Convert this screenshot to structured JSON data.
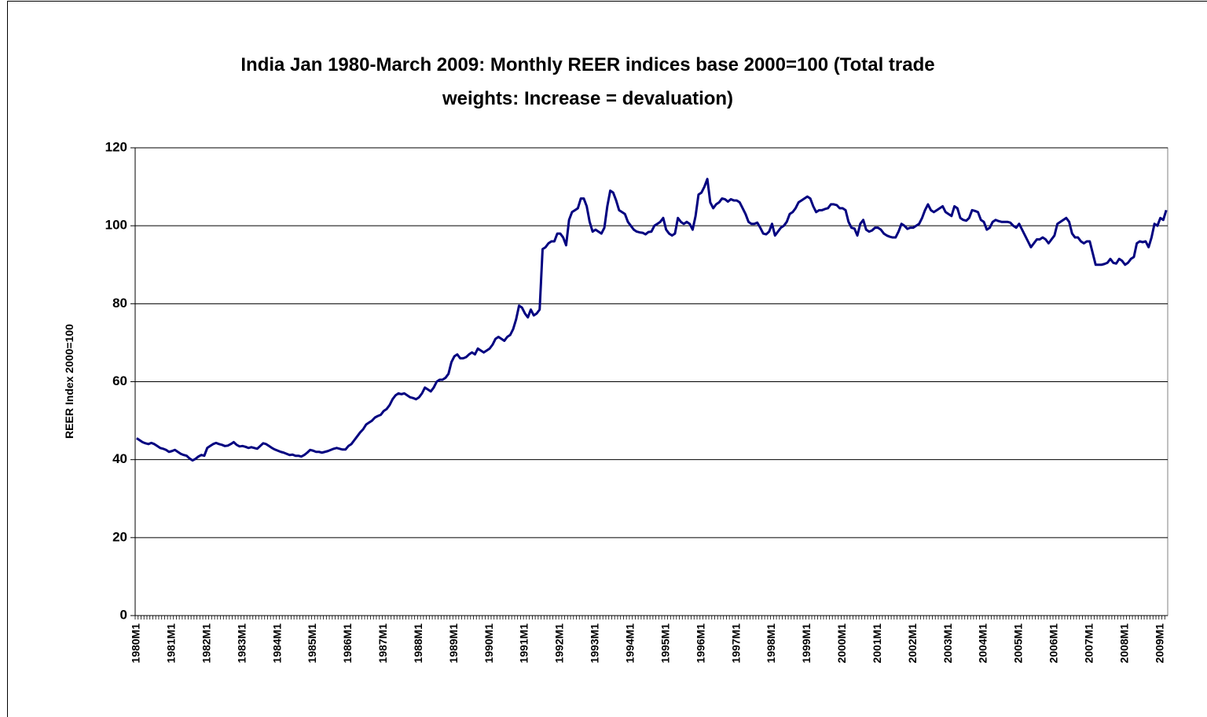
{
  "chart_data": {
    "type": "line",
    "title": [
      "India Jan 1980-March 2009: Monthly REER indices base 2000=100 (Total trade",
      "weights: Increase = devaluation)"
    ],
    "y_label": "REER Index 2000=100",
    "ylim": [
      0,
      120
    ],
    "yticks": [
      0,
      20,
      40,
      60,
      80,
      100,
      120
    ],
    "grid": true,
    "categories": [
      "1980M1",
      null,
      null,
      null,
      null,
      null,
      null,
      null,
      null,
      null,
      null,
      null,
      "1981M1",
      null,
      null,
      null,
      null,
      null,
      null,
      null,
      null,
      null,
      null,
      null,
      "1982M1",
      null,
      null,
      null,
      null,
      null,
      null,
      null,
      null,
      null,
      null,
      null,
      "1983M1",
      null,
      null,
      null,
      null,
      null,
      null,
      null,
      null,
      null,
      null,
      null,
      "1984M1",
      null,
      null,
      null,
      null,
      null,
      null,
      null,
      null,
      null,
      null,
      null,
      "1985M1",
      null,
      null,
      null,
      null,
      null,
      null,
      null,
      null,
      null,
      null,
      null,
      "1986M1",
      null,
      null,
      null,
      null,
      null,
      null,
      null,
      null,
      null,
      null,
      null,
      "1987M1",
      null,
      null,
      null,
      null,
      null,
      null,
      null,
      null,
      null,
      null,
      null,
      "1988M1",
      null,
      null,
      null,
      null,
      null,
      null,
      null,
      null,
      null,
      null,
      null,
      "1989M1",
      null,
      null,
      null,
      null,
      null,
      null,
      null,
      null,
      null,
      null,
      null,
      "1990M1",
      null,
      null,
      null,
      null,
      null,
      null,
      null,
      null,
      null,
      null,
      null,
      "1991M1",
      null,
      null,
      null,
      null,
      null,
      null,
      null,
      null,
      null,
      null,
      null,
      "1992M1",
      null,
      null,
      null,
      null,
      null,
      null,
      null,
      null,
      null,
      null,
      null,
      "1993M1",
      null,
      null,
      null,
      null,
      null,
      null,
      null,
      null,
      null,
      null,
      null,
      "1994M1",
      null,
      null,
      null,
      null,
      null,
      null,
      null,
      null,
      null,
      null,
      null,
      "1995M1",
      null,
      null,
      null,
      null,
      null,
      null,
      null,
      null,
      null,
      null,
      null,
      "1996M1",
      null,
      null,
      null,
      null,
      null,
      null,
      null,
      null,
      null,
      null,
      null,
      "1997M1",
      null,
      null,
      null,
      null,
      null,
      null,
      null,
      null,
      null,
      null,
      null,
      "1998M1",
      null,
      null,
      null,
      null,
      null,
      null,
      null,
      null,
      null,
      null,
      null,
      "1999M1",
      null,
      null,
      null,
      null,
      null,
      null,
      null,
      null,
      null,
      null,
      null,
      "2000M1",
      null,
      null,
      null,
      null,
      null,
      null,
      null,
      null,
      null,
      null,
      null,
      "2001M1",
      null,
      null,
      null,
      null,
      null,
      null,
      null,
      null,
      null,
      null,
      null,
      "2002M1",
      null,
      null,
      null,
      null,
      null,
      null,
      null,
      null,
      null,
      null,
      null,
      "2003M1",
      null,
      null,
      null,
      null,
      null,
      null,
      null,
      null,
      null,
      null,
      null,
      "2004M1",
      null,
      null,
      null,
      null,
      null,
      null,
      null,
      null,
      null,
      null,
      null,
      "2005M1",
      null,
      null,
      null,
      null,
      null,
      null,
      null,
      null,
      null,
      null,
      null,
      "2006M1",
      null,
      null,
      null,
      null,
      null,
      null,
      null,
      null,
      null,
      null,
      null,
      "2007M1",
      null,
      null,
      null,
      null,
      null,
      null,
      null,
      null,
      null,
      null,
      null,
      "2008M1",
      null,
      null,
      null,
      null,
      null,
      null,
      null,
      null,
      null,
      null,
      null,
      "2009M1",
      null,
      null
    ],
    "series": [
      {
        "color": "#000080",
        "values": [
          45.5,
          45,
          44.5,
          44.2,
          44,
          44.3,
          44,
          43.5,
          43,
          42.8,
          42.5,
          42,
          42.2,
          42.5,
          42,
          41.5,
          41.2,
          41,
          40.3,
          39.8,
          40.2,
          40.8,
          41.2,
          41,
          43,
          43.5,
          44,
          44.3,
          44,
          43.8,
          43.5,
          43.6,
          44,
          44.5,
          43.8,
          43.4,
          43.5,
          43.3,
          43,
          43.2,
          43,
          42.8,
          43.5,
          44.2,
          44,
          43.5,
          43,
          42.6,
          42.3,
          42,
          41.8,
          41.5,
          41.2,
          41.3,
          41,
          41,
          40.8,
          41.2,
          41.8,
          42.5,
          42.3,
          42,
          42,
          41.8,
          42,
          42.2,
          42.5,
          42.8,
          43,
          42.8,
          42.6,
          42.6,
          43.5,
          44,
          45,
          46,
          47,
          47.8,
          49,
          49.5,
          50,
          50.8,
          51.2,
          51.5,
          52.5,
          53,
          54,
          55.5,
          56.5,
          57,
          56.8,
          57,
          56.5,
          56,
          55.8,
          55.5,
          56,
          57,
          58.5,
          58,
          57.5,
          58.5,
          60,
          60.5,
          60.5,
          61,
          62,
          65,
          66.5,
          67,
          66,
          66,
          66.3,
          67,
          67.5,
          67,
          68.5,
          68,
          67.5,
          68,
          68.5,
          69.5,
          71,
          71.5,
          71,
          70.5,
          71.5,
          72,
          73.5,
          76,
          79.5,
          79,
          77.5,
          76.5,
          78.5,
          77,
          77.5,
          78.5,
          94,
          94.5,
          95.5,
          96,
          96,
          98,
          98,
          97,
          95,
          101.5,
          103.5,
          104,
          104.5,
          107,
          107,
          105,
          101,
          98.5,
          99,
          98.5,
          98,
          99.5,
          105,
          109,
          108.5,
          106.5,
          104,
          103.5,
          103,
          101,
          100,
          99,
          98.5,
          98.3,
          98.2,
          97.8,
          98.4,
          98.5,
          100,
          100.5,
          101,
          102,
          99,
          98,
          97.5,
          98,
          102,
          101,
          100.5,
          101,
          100.5,
          99,
          102.5,
          108,
          108.5,
          110,
          112,
          106,
          104.5,
          105.5,
          106,
          107,
          106.8,
          106.2,
          106.8,
          106.5,
          106.5,
          106,
          104.5,
          103,
          101,
          100.5,
          100.5,
          100.8,
          99.5,
          98,
          97.8,
          98.5,
          100.5,
          97.5,
          98.5,
          99.5,
          100,
          101,
          103,
          103.5,
          104.5,
          106,
          106.5,
          107,
          107.5,
          107,
          105,
          103.5,
          104,
          104,
          104.3,
          104.5,
          105.5,
          105.5,
          105.3,
          104.5,
          104.5,
          104,
          101,
          99.5,
          99.3,
          97.5,
          100.5,
          101.5,
          99,
          98.5,
          98.8,
          99.5,
          99.5,
          99,
          98,
          97.5,
          97.2,
          97,
          97,
          98.5,
          100.5,
          100,
          99.2,
          99.5,
          99.5,
          100,
          100.5,
          102,
          104,
          105.5,
          104,
          103.5,
          104,
          104.5,
          105,
          103.5,
          103,
          102.5,
          105,
          104.5,
          102,
          101.5,
          101.3,
          102,
          104,
          103.8,
          103.5,
          101.5,
          101,
          99,
          99.5,
          101,
          101.5,
          101.2,
          101,
          101,
          101,
          100.8,
          100,
          99.5,
          100.5,
          99,
          97.5,
          96,
          94.5,
          95.5,
          96.5,
          96.5,
          97,
          96.5,
          95.5,
          96.5,
          97.5,
          100.5,
          101,
          101.5,
          102,
          101,
          98,
          97,
          97,
          96,
          95.5,
          96,
          96,
          93,
          90,
          90,
          90,
          90.2,
          90.5,
          91.5,
          90.5,
          90.3,
          91.5,
          91,
          90,
          90.5,
          91.5,
          92,
          95.5,
          96,
          95.8,
          96,
          94.5,
          97,
          100.5,
          100,
          102,
          101.5,
          104
        ]
      }
    ]
  }
}
